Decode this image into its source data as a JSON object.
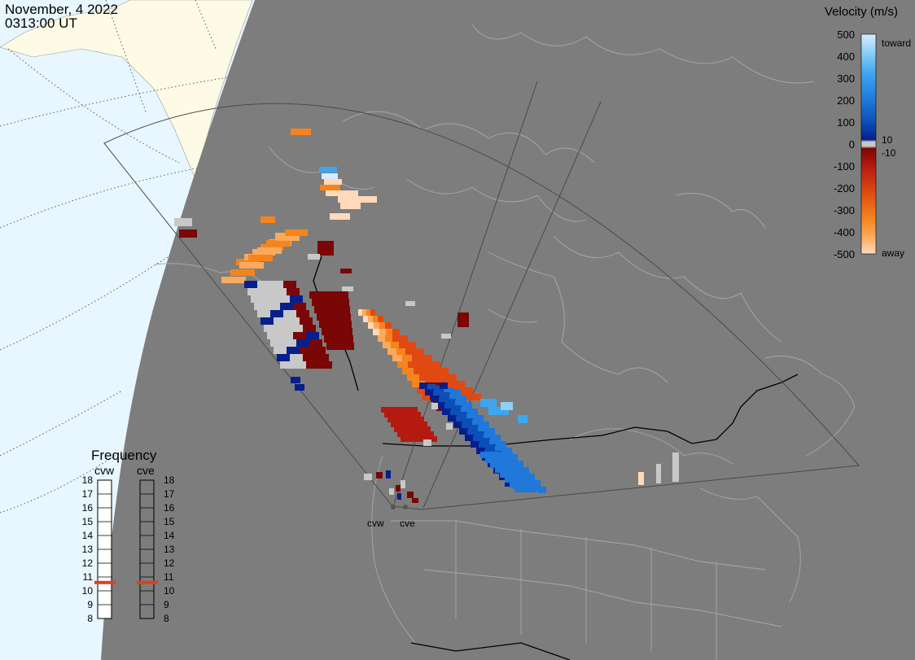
{
  "header": {
    "date": "November, 4 2022",
    "time": "0313:00 UT"
  },
  "colorbar": {
    "title": "Velocity (m/s)",
    "ticks": [
      "500",
      "400",
      "300",
      "200",
      "100",
      "0",
      "-100",
      "-200",
      "-300",
      "-400",
      "-500"
    ],
    "toward_label": "toward",
    "away_label": "away",
    "pos_threshold": "10",
    "neg_threshold": "-10",
    "colors": {
      "toward": [
        "#d7ecfb",
        "#8fd0f8",
        "#3ea6f0",
        "#1f78da",
        "#0c4fb8",
        "#061f8c"
      ],
      "ground": "#c8c8c8",
      "away": [
        "#7a0606",
        "#b41a10",
        "#e04a12",
        "#f5841e",
        "#fbaa5c",
        "#ffd9b8"
      ]
    }
  },
  "frequency": {
    "title": "Frequency",
    "columns": [
      "cvw",
      "cve"
    ],
    "ticks": [
      "18",
      "17",
      "16",
      "15",
      "14",
      "13",
      "12",
      "11",
      "10",
      "9",
      "8"
    ],
    "cvw_mhz": 10.6,
    "cve_mhz": 10.6,
    "marker_color": "#e0401a"
  },
  "stations": [
    "cvw",
    "cve"
  ],
  "map": {
    "background_color": "#7d7d7d",
    "ocean_color": "#e8f6ff",
    "land_color": "#fdfbe6",
    "boundary_color": "#a8a8a8",
    "fov_color": "#5a5a5a"
  }
}
